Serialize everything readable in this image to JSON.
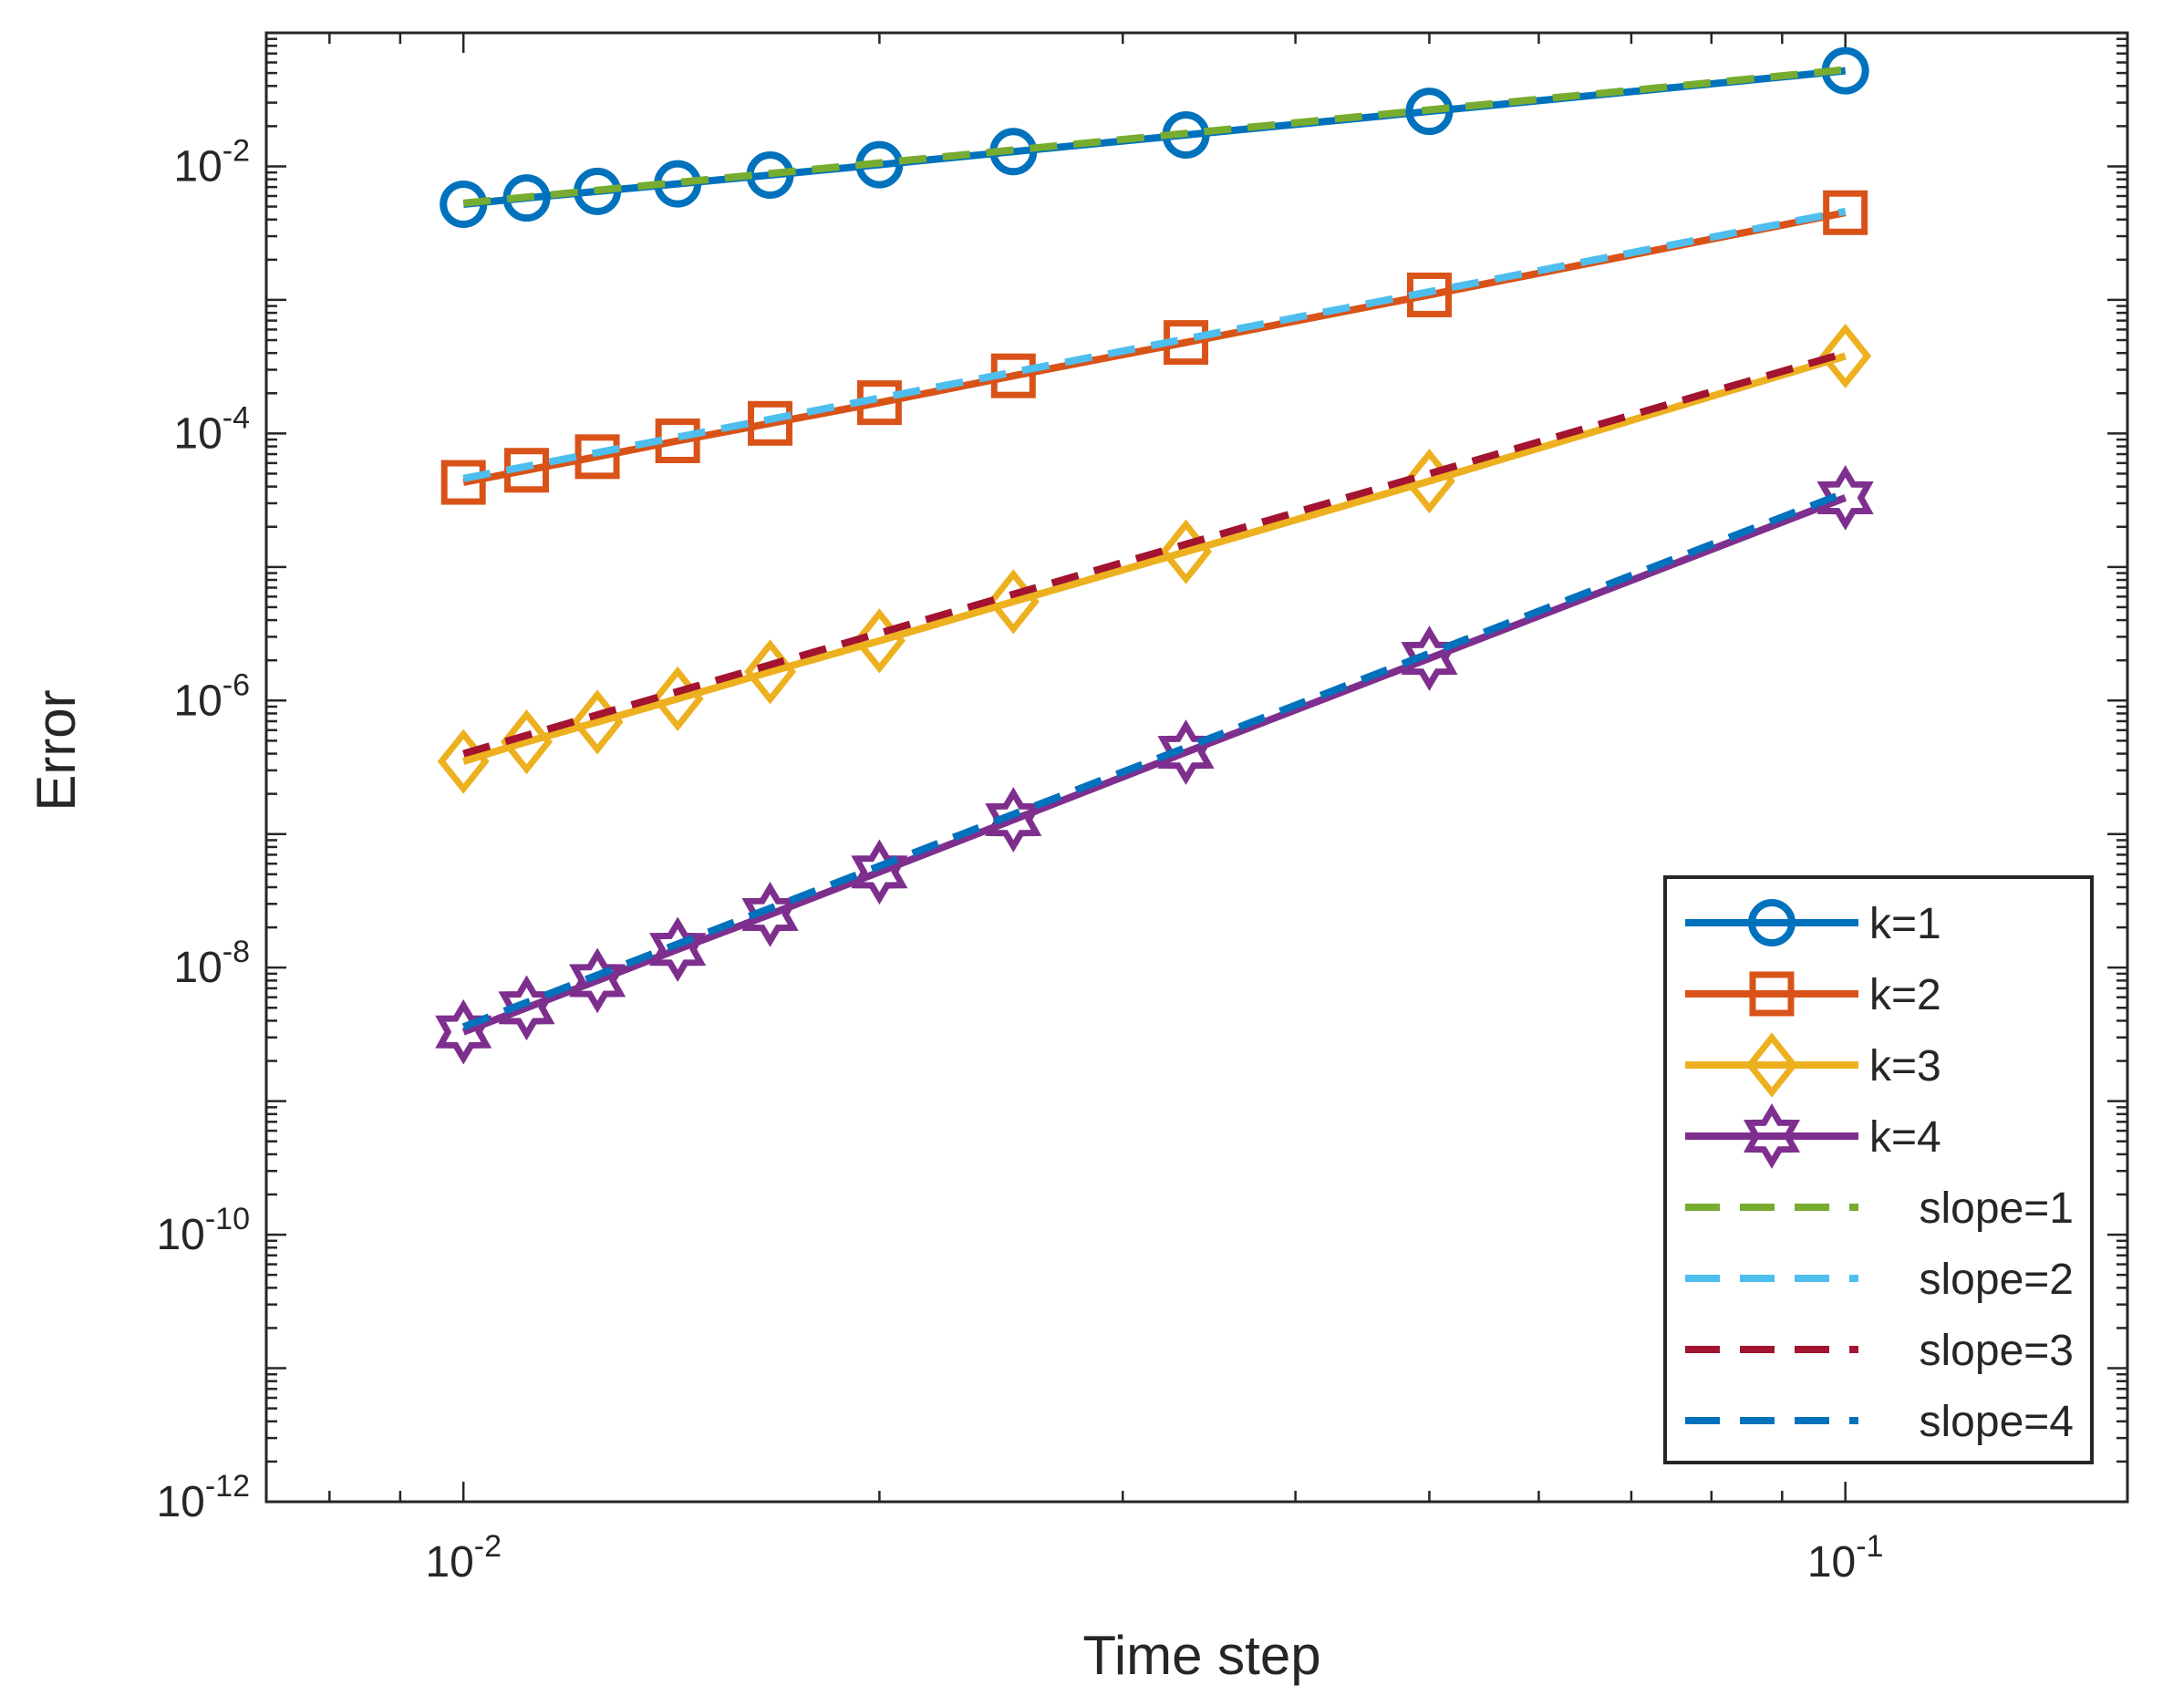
{
  "chart_data": {
    "type": "line",
    "title": "",
    "xlabel": "Time step",
    "ylabel": "Error",
    "xscale": "log",
    "yscale": "log",
    "xlim": [
      0.0072,
      0.16
    ],
    "ylim": [
      1e-12,
      0.1
    ],
    "x_ticks": [
      {
        "value": 0.01,
        "base": "10",
        "exp": "-2"
      },
      {
        "value": 0.1,
        "base": "10",
        "exp": "-1"
      }
    ],
    "y_ticks": [
      {
        "value": 1e-12,
        "base": "10",
        "exp": "-12"
      },
      {
        "value": 1e-10,
        "base": "10",
        "exp": "-10"
      },
      {
        "value": 1e-08,
        "base": "10",
        "exp": "-8"
      },
      {
        "value": 1e-06,
        "base": "10",
        "exp": "-6"
      },
      {
        "value": 0.0001,
        "base": "10",
        "exp": "-4"
      },
      {
        "value": 0.01,
        "base": "10",
        "exp": "-2"
      }
    ],
    "x": [
      0.01,
      0.01111,
      0.0125,
      0.01429,
      0.01667,
      0.02,
      0.025,
      0.03333,
      0.05,
      0.1
    ],
    "series": [
      {
        "name": "k=1",
        "style": "solid",
        "marker": "circle",
        "color": "#0072BD",
        "values": [
          0.0052,
          0.0058,
          0.0065,
          0.0074,
          0.0086,
          0.0103,
          0.0129,
          0.0172,
          0.0258,
          0.052
        ]
      },
      {
        "name": "k=2",
        "style": "solid",
        "marker": "square",
        "color": "#D95319",
        "values": [
          4.3e-05,
          5.3e-05,
          6.7e-05,
          8.8e-05,
          0.000119,
          0.00017,
          0.00027,
          0.00048,
          0.00109,
          0.0045
        ]
      },
      {
        "name": "k=3",
        "style": "solid",
        "marker": "diamond",
        "color": "#EDB120",
        "values": [
          3.5e-07,
          4.9e-07,
          6.9e-07,
          1.03e-06,
          1.64e-06,
          2.8e-06,
          5.5e-06,
          1.3e-05,
          4.4e-05,
          0.00038
        ]
      },
      {
        "name": "k=4",
        "style": "solid",
        "marker": "hexagram",
        "color": "#7E2F8E",
        "values": [
          3.3e-09,
          5e-09,
          8e-09,
          1.37e-08,
          2.5e-08,
          5.2e-08,
          1.28e-07,
          4.1e-07,
          2.07e-06,
          3.3e-05
        ]
      },
      {
        "name": "slope=1",
        "style": "dashed",
        "marker": "none",
        "color": "#77AC30",
        "x": [
          0.01,
          0.1
        ],
        "values": [
          0.0053,
          0.053
        ]
      },
      {
        "name": "slope=2",
        "style": "dashed",
        "marker": "none",
        "color": "#4DBEEE",
        "x": [
          0.01,
          0.1
        ],
        "values": [
          4.6e-05,
          0.0046
        ]
      },
      {
        "name": "slope=3",
        "style": "dashed",
        "marker": "none",
        "color": "#A2142F",
        "x": [
          0.01,
          0.1
        ],
        "values": [
          4e-07,
          0.0004
        ]
      },
      {
        "name": "slope=4",
        "style": "dashed",
        "marker": "none",
        "color": "#0072BD",
        "x": [
          0.01,
          0.1
        ],
        "values": [
          3.6e-09,
          3.6e-05
        ]
      }
    ],
    "legend_position": "bottom-right",
    "grid": false
  }
}
